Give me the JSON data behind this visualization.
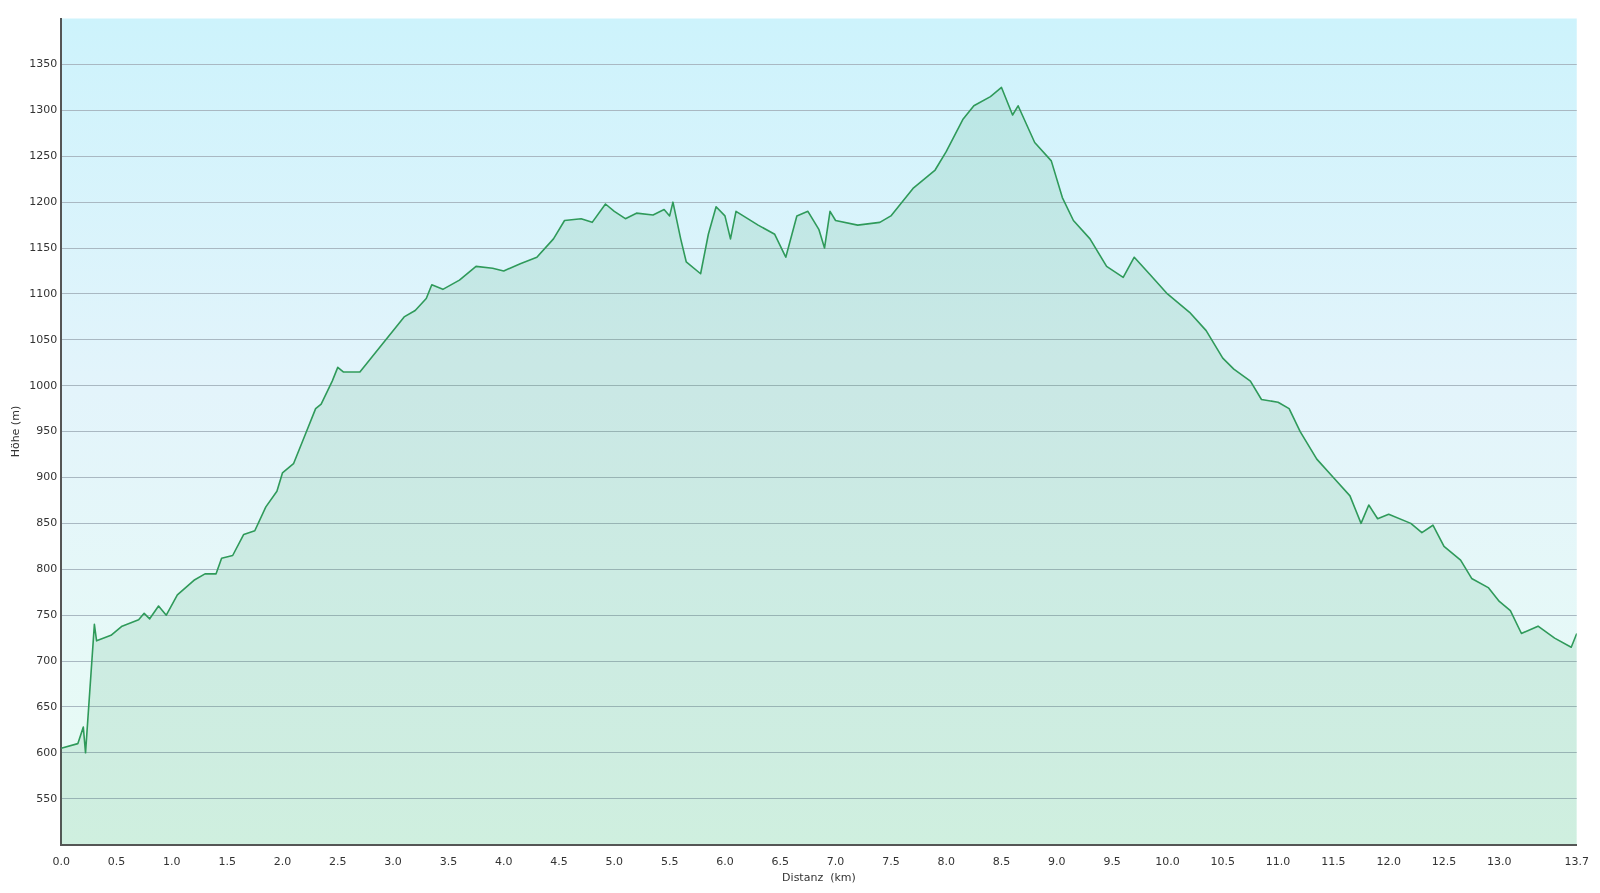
{
  "chart_data": {
    "type": "area",
    "xlabel": "Distanz  (km)",
    "ylabel": "Höhe (m)",
    "x": [
      0,
      0.15,
      0.2,
      0.22,
      0.3,
      0.32,
      0.45,
      0.55,
      0.7,
      0.75,
      0.8,
      0.88,
      0.95,
      1.05,
      1.2,
      1.3,
      1.4,
      1.45,
      1.55,
      1.65,
      1.75,
      1.85,
      1.95,
      2.0,
      2.1,
      2.2,
      2.3,
      2.35,
      2.45,
      2.5,
      2.55,
      2.7,
      2.8,
      2.9,
      3.0,
      3.1,
      3.2,
      3.3,
      3.35,
      3.45,
      3.6,
      3.75,
      3.9,
      4.0,
      4.15,
      4.3,
      4.45,
      4.55,
      4.7,
      4.8,
      4.92,
      5.0,
      5.1,
      5.2,
      5.35,
      5.45,
      5.5,
      5.53,
      5.6,
      5.65,
      5.78,
      5.85,
      5.92,
      6.0,
      6.05,
      6.1,
      6.3,
      6.45,
      6.55,
      6.65,
      6.75,
      6.85,
      6.9,
      6.95,
      7.0,
      7.2,
      7.4,
      7.5,
      7.7,
      7.9,
      8.0,
      8.15,
      8.25,
      8.4,
      8.5,
      8.6,
      8.65,
      8.8,
      8.95,
      9.05,
      9.15,
      9.3,
      9.45,
      9.6,
      9.7,
      9.85,
      10.0,
      10.2,
      10.35,
      10.5,
      10.6,
      10.75,
      10.85,
      11.0,
      11.1,
      11.2,
      11.35,
      11.5,
      11.65,
      11.75,
      11.82,
      11.9,
      12.0,
      12.2,
      12.3,
      12.4,
      12.5,
      12.65,
      12.75,
      12.9,
      13.0,
      13.1,
      13.2,
      13.35,
      13.5,
      13.65,
      13.7
    ],
    "series": [
      {
        "color": "#2f9a5a",
        "values": [
          605,
          610,
          628,
          600,
          740,
          722,
          728,
          738,
          745,
          752,
          746,
          760,
          750,
          772,
          788,
          795,
          795,
          812,
          815,
          838,
          842,
          868,
          885,
          905,
          915,
          945,
          975,
          980,
          1005,
          1020,
          1015,
          1015,
          1030,
          1045,
          1060,
          1075,
          1082,
          1095,
          1110,
          1105,
          1115,
          1130,
          1128,
          1125,
          1133,
          1140,
          1160,
          1180,
          1182,
          1178,
          1198,
          1190,
          1182,
          1188,
          1186,
          1192,
          1185,
          1200,
          1160,
          1135,
          1122,
          1165,
          1195,
          1185,
          1160,
          1190,
          1175,
          1165,
          1140,
          1185,
          1190,
          1170,
          1150,
          1190,
          1180,
          1175,
          1178,
          1185,
          1215,
          1235,
          1255,
          1290,
          1305,
          1315,
          1325,
          1295,
          1305,
          1265,
          1245,
          1205,
          1180,
          1160,
          1130,
          1118,
          1140,
          1120,
          1100,
          1080,
          1060,
          1030,
          1018,
          1005,
          985,
          982,
          975,
          950,
          920,
          900,
          880,
          850,
          870,
          855,
          860,
          850,
          840,
          848,
          825,
          810,
          790,
          780,
          765,
          755,
          730,
          738,
          725,
          715,
          730
        ]
      }
    ],
    "xlim": [
      0,
      13.7
    ],
    "xticks": [
      {
        "value": 0,
        "label": "0.0"
      },
      0.5,
      {
        "value": 1,
        "label": "1.0"
      },
      1.5,
      {
        "value": 2,
        "label": "2.0"
      },
      2.5,
      {
        "value": 3,
        "label": "3.0"
      },
      3.5,
      {
        "value": 4,
        "label": "4.0"
      },
      4.5,
      {
        "value": 5,
        "label": "5.0"
      },
      5.5,
      {
        "value": 6,
        "label": "6.0"
      },
      6.5,
      {
        "value": 7,
        "label": "7.0"
      },
      7.5,
      {
        "value": 8,
        "label": "8.0"
      },
      8.5,
      {
        "value": 9,
        "label": "9.0"
      },
      9.5,
      {
        "value": 10,
        "label": "10.0"
      },
      10.5,
      {
        "value": 11,
        "label": "11.0"
      },
      11.5,
      {
        "value": 12,
        "label": "12.0"
      },
      12.5,
      {
        "value": 13,
        "label": "13.0"
      },
      13.7
    ],
    "ylim": [
      500,
      1400
    ],
    "yticks": [
      550,
      600,
      650,
      700,
      750,
      800,
      850,
      900,
      950,
      1000,
      1050,
      1100,
      1150,
      1200,
      1250,
      1300,
      1350
    ],
    "grid": "y",
    "legend": false,
    "marker": "none",
    "line_style": "solid"
  }
}
